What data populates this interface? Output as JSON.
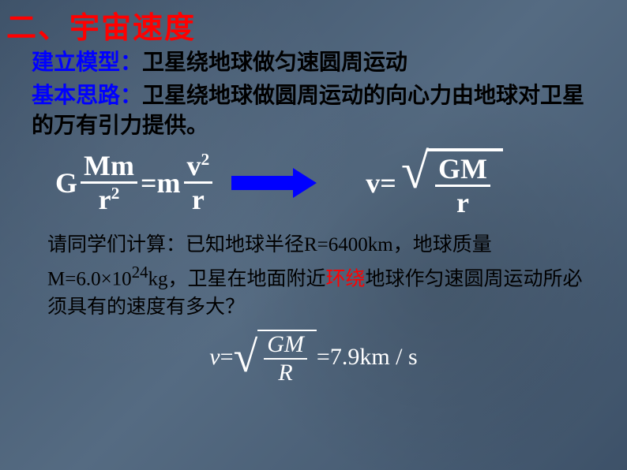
{
  "title": "二、宇宙速度",
  "model": {
    "label": "建立模型：",
    "text": "卫星绕地球做匀速圆周运动"
  },
  "idea": {
    "label": "基本思路：",
    "text": "卫星绕地球做圆周运动的向心力由地球对卫星的万有引力提供。"
  },
  "equation": {
    "lhs": {
      "G": "G",
      "num1": "Mm",
      "den1_base": "r",
      "den1_exp": "2",
      "eq": "=",
      "m": "m",
      "num2_base": "v",
      "num2_exp": "2",
      "den2": "r"
    },
    "rhs": {
      "v": "v",
      "eq": "=",
      "num": "GM",
      "den": "r"
    }
  },
  "question": {
    "pre": "请同学们计算：已知地球半径R=6400km，地球质量M=6.0×10",
    "exp": "24",
    "mid": "kg，卫星在地面附近",
    "red": "环绕",
    "post": "地球作匀速圆周运动所必须具有的速度有多大？"
  },
  "final": {
    "v": "v",
    "eq1": " = ",
    "num": "GM",
    "den": "R",
    "eq2": " = ",
    "val": " 7.9km / s",
    "unit_style": {
      "fontstyle": "italic"
    }
  },
  "colors": {
    "title": "#ff0000",
    "label": "#0000ff",
    "arrow": "#0000ff",
    "body_text_black": "#000000",
    "body_text_white": "#ffffff",
    "bg_base": "#4a5f76"
  },
  "fonts": {
    "title_size": 38,
    "line_size": 28,
    "eq_size": 36,
    "question_size": 25,
    "final_size": 30
  }
}
